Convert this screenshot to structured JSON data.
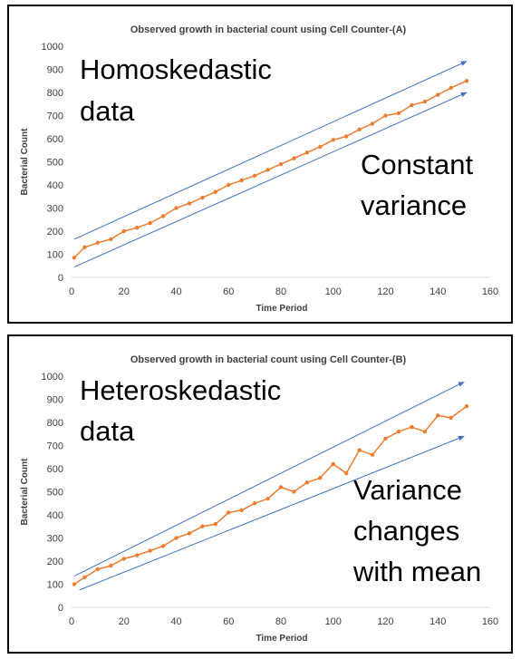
{
  "chart_data": [
    {
      "type": "line",
      "title": "Observed growth in bacterial count using Cell Counter-(A)",
      "xlabel": "Time Period",
      "ylabel": "Bacterial Count",
      "xlim": [
        0,
        160
      ],
      "ylim": [
        0,
        1000
      ],
      "xticks": [
        "0",
        "20",
        "40",
        "60",
        "80",
        "100",
        "120",
        "140",
        "160"
      ],
      "yticks": [
        "0",
        "100",
        "200",
        "300",
        "400",
        "500",
        "600",
        "700",
        "800",
        "900",
        "1000"
      ],
      "grid": false,
      "legend": "none",
      "series_color": "#ED7D31",
      "trend_color": "#4472C4",
      "annotations": [
        "Homoskedastic",
        "data",
        "Constant",
        "variance"
      ],
      "trend_lines": [
        {
          "x": [
            1,
            151
          ],
          "y": [
            165,
            935
          ]
        },
        {
          "x": [
            1,
            151
          ],
          "y": [
            45,
            800
          ]
        }
      ],
      "series": [
        {
          "x": [
            1,
            5,
            10,
            15,
            20,
            25,
            30,
            35,
            40,
            45,
            50,
            55,
            60,
            65,
            70,
            75,
            80,
            85,
            90,
            95,
            100,
            105,
            110,
            115,
            120,
            125,
            130,
            135,
            140,
            145,
            151
          ],
          "values": [
            85,
            130,
            150,
            165,
            200,
            215,
            235,
            265,
            300,
            320,
            345,
            370,
            400,
            420,
            440,
            465,
            490,
            515,
            540,
            565,
            595,
            610,
            640,
            665,
            700,
            710,
            745,
            760,
            790,
            820,
            850
          ]
        }
      ]
    },
    {
      "type": "line",
      "title": "Observed growth in bacterial count using Cell Counter-(B)",
      "xlabel": "Time Period",
      "ylabel": "Bacterial Count",
      "xlim": [
        0,
        160
      ],
      "ylim": [
        0,
        1000
      ],
      "xticks": [
        "0",
        "20",
        "40",
        "60",
        "80",
        "100",
        "120",
        "140",
        "160"
      ],
      "yticks": [
        "0",
        "100",
        "200",
        "300",
        "400",
        "500",
        "600",
        "700",
        "800",
        "900",
        "1000"
      ],
      "grid": false,
      "legend": "none",
      "series_color": "#ED7D31",
      "trend_color": "#4472C4",
      "annotations": [
        "Heteroskedastic",
        "data",
        "Variance",
        "changes",
        "with mean"
      ],
      "trend_lines": [
        {
          "x": [
            1,
            150
          ],
          "y": [
            135,
            975
          ]
        },
        {
          "x": [
            3,
            150
          ],
          "y": [
            75,
            740
          ]
        }
      ],
      "series": [
        {
          "x": [
            1,
            5,
            10,
            15,
            20,
            25,
            30,
            35,
            40,
            45,
            50,
            55,
            60,
            65,
            70,
            75,
            80,
            85,
            90,
            95,
            100,
            105,
            110,
            115,
            120,
            125,
            130,
            135,
            140,
            145,
            151
          ],
          "values": [
            100,
            130,
            165,
            180,
            210,
            225,
            245,
            265,
            300,
            320,
            350,
            360,
            410,
            420,
            450,
            470,
            520,
            500,
            540,
            560,
            620,
            580,
            680,
            660,
            730,
            760,
            780,
            760,
            830,
            820,
            870
          ]
        }
      ]
    }
  ]
}
